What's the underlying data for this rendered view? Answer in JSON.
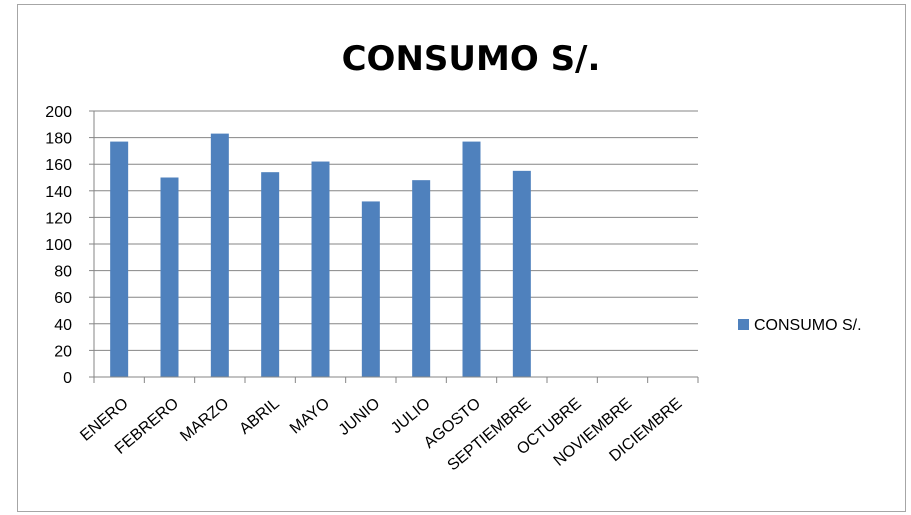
{
  "chart_data": {
    "type": "bar",
    "title": "CONSUMO S/.",
    "xlabel": "",
    "ylabel": "",
    "categories": [
      "ENERO",
      "FEBRERO",
      "MARZO",
      "ABRIL",
      "MAYO",
      "JUNIO",
      "JULIO",
      "AGOSTO",
      "SEPTIEMBRE",
      "OCTUBRE",
      "NOVIEMBRE",
      "DICIEMBRE"
    ],
    "series": [
      {
        "name": "CONSUMO S/.",
        "values": [
          177,
          150,
          183,
          154,
          162,
          132,
          148,
          177,
          155,
          null,
          null,
          null
        ],
        "color": "#4f81bd"
      }
    ],
    "ylim": [
      0,
      200
    ],
    "yticks": [
      0,
      20,
      40,
      60,
      80,
      100,
      120,
      140,
      160,
      180,
      200
    ],
    "grid": true,
    "legend_position": "right"
  }
}
